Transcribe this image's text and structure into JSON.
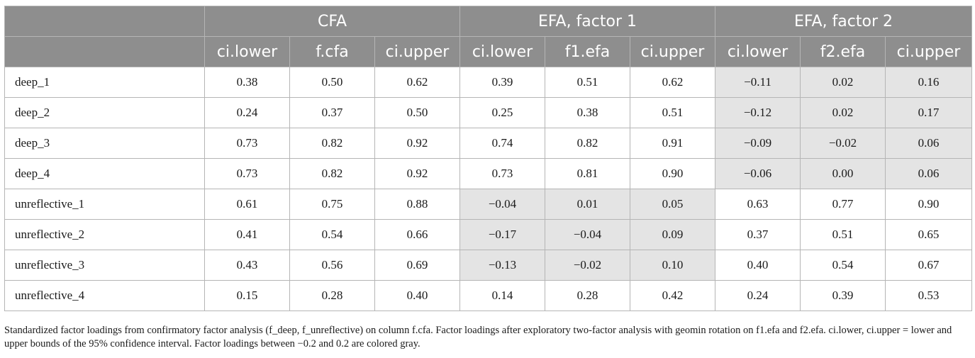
{
  "table": {
    "groups": [
      {
        "label": "CFA"
      },
      {
        "label": "EFA, factor 1"
      },
      {
        "label": "EFA, factor 2"
      }
    ],
    "columns": [
      "ci.lower",
      "f.cfa",
      "ci.upper",
      "ci.lower",
      "f1.efa",
      "ci.upper",
      "ci.lower",
      "f2.efa",
      "ci.upper"
    ],
    "rows": [
      {
        "label": "deep_1",
        "values": [
          "0.38",
          "0.50",
          "0.62",
          "0.39",
          "0.51",
          "0.62",
          "−0.11",
          "0.02",
          "0.16"
        ],
        "gray": [
          false,
          false,
          false,
          false,
          false,
          false,
          true,
          true,
          true
        ]
      },
      {
        "label": "deep_2",
        "values": [
          "0.24",
          "0.37",
          "0.50",
          "0.25",
          "0.38",
          "0.51",
          "−0.12",
          "0.02",
          "0.17"
        ],
        "gray": [
          false,
          false,
          false,
          false,
          false,
          false,
          true,
          true,
          true
        ]
      },
      {
        "label": "deep_3",
        "values": [
          "0.73",
          "0.82",
          "0.92",
          "0.74",
          "0.82",
          "0.91",
          "−0.09",
          "−0.02",
          "0.06"
        ],
        "gray": [
          false,
          false,
          false,
          false,
          false,
          false,
          true,
          true,
          true
        ]
      },
      {
        "label": "deep_4",
        "values": [
          "0.73",
          "0.82",
          "0.92",
          "0.73",
          "0.81",
          "0.90",
          "−0.06",
          "0.00",
          "0.06"
        ],
        "gray": [
          false,
          false,
          false,
          false,
          false,
          false,
          true,
          true,
          true
        ]
      },
      {
        "label": "unreflective_1",
        "values": [
          "0.61",
          "0.75",
          "0.88",
          "−0.04",
          "0.01",
          "0.05",
          "0.63",
          "0.77",
          "0.90"
        ],
        "gray": [
          false,
          false,
          false,
          true,
          true,
          true,
          false,
          false,
          false
        ]
      },
      {
        "label": "unreflective_2",
        "values": [
          "0.41",
          "0.54",
          "0.66",
          "−0.17",
          "−0.04",
          "0.09",
          "0.37",
          "0.51",
          "0.65"
        ],
        "gray": [
          false,
          false,
          false,
          true,
          true,
          true,
          false,
          false,
          false
        ]
      },
      {
        "label": "unreflective_3",
        "values": [
          "0.43",
          "0.56",
          "0.69",
          "−0.13",
          "−0.02",
          "0.10",
          "0.40",
          "0.54",
          "0.67"
        ],
        "gray": [
          false,
          false,
          false,
          true,
          true,
          true,
          false,
          false,
          false
        ]
      },
      {
        "label": "unreflective_4",
        "values": [
          "0.15",
          "0.28",
          "0.40",
          "0.14",
          "0.28",
          "0.42",
          "0.24",
          "0.39",
          "0.53"
        ],
        "gray": [
          false,
          false,
          false,
          false,
          false,
          false,
          false,
          false,
          false
        ]
      }
    ]
  },
  "caption": "Standardized factor loadings from confirmatory factor analysis (f_deep, f_unreflective) on column f.cfa. Factor loadings after exploratory two-factor analysis with geomin rotation on f1.efa and f2.efa. ci.lower, ci.upper = lower and upper bounds of the 95% confidence interval. Factor loadings between −0.2 and 0.2 are colored gray.",
  "colors": {
    "header_bg": "#8e8e8e",
    "gray_cell": "#e4e4e4",
    "border": "#b5b5b5"
  }
}
